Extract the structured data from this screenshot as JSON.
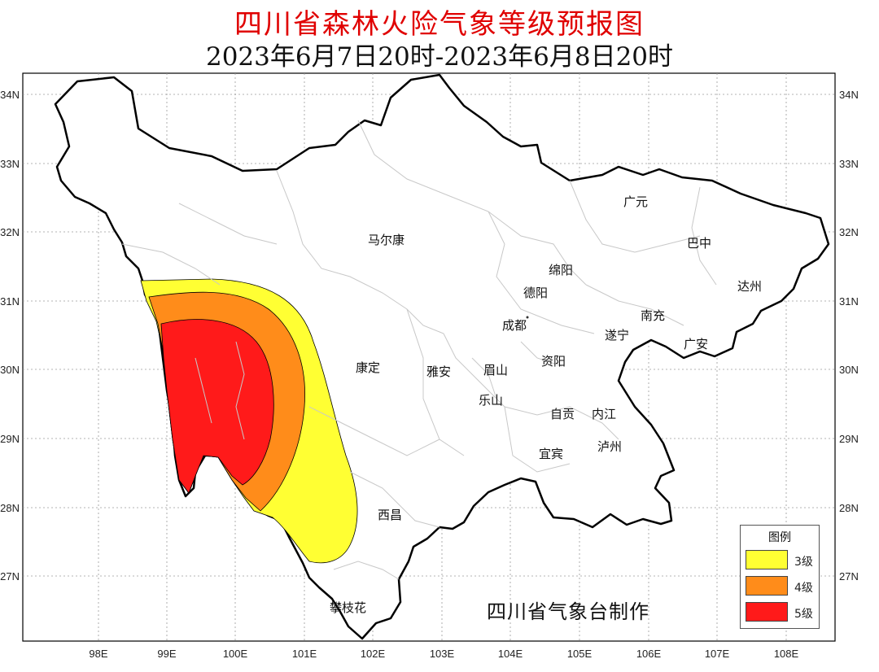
{
  "title": "四川省森林火险气象等级预报图",
  "subtitle": "2023年6月7日20时-2023年6月8日20时",
  "credit": "四川省气象台制作",
  "axes": {
    "lon_ticks": [
      "98E",
      "99E",
      "100E",
      "101E",
      "102E",
      "103E",
      "104E",
      "105E",
      "106E",
      "107E",
      "108E"
    ],
    "lat_ticks": [
      "34N",
      "33N",
      "32N",
      "31N",
      "30N",
      "29N",
      "28N",
      "27N"
    ]
  },
  "cities": [
    {
      "name": "广元"
    },
    {
      "name": "巴中"
    },
    {
      "name": "马尔康"
    },
    {
      "name": "绵阳"
    },
    {
      "name": "达州"
    },
    {
      "name": "德阳"
    },
    {
      "name": "南充"
    },
    {
      "name": "成都"
    },
    {
      "name": "遂宁"
    },
    {
      "name": "广安"
    },
    {
      "name": "康定"
    },
    {
      "name": "雅安"
    },
    {
      "name": "眉山"
    },
    {
      "name": "资阳"
    },
    {
      "name": "乐山"
    },
    {
      "name": "自贡"
    },
    {
      "name": "内江"
    },
    {
      "name": "泸州"
    },
    {
      "name": "宜宾"
    },
    {
      "name": "西昌"
    },
    {
      "name": "攀枝花"
    }
  ],
  "legend": {
    "title": "图例",
    "items": [
      {
        "label": "3级",
        "color": "#ffff33"
      },
      {
        "label": "4级",
        "color": "#ff8c1a"
      },
      {
        "label": "5级",
        "color": "#ff1a1a"
      }
    ]
  }
}
